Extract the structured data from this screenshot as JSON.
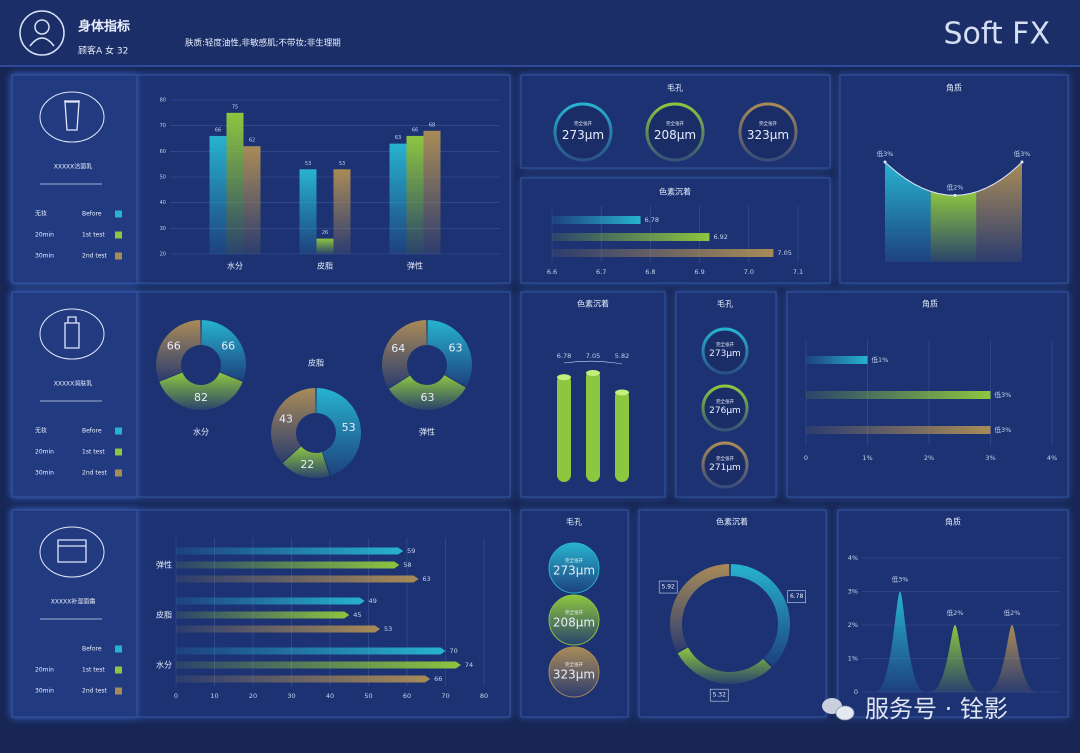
{
  "header": {
    "title": "身体指标",
    "customer": "顾客A 女 32",
    "skin": "肤质:轻度油性,非敏感肌;不带妆;非生理期",
    "brand": "Soft FX"
  },
  "products": [
    {
      "name": "XXXXX洁面乳",
      "legend": [
        {
          "time": "无妆",
          "name": "Before",
          "color": "#27b3cf"
        },
        {
          "time": "20min",
          "name": "1st test",
          "color": "#8dc63f"
        },
        {
          "time": "30min",
          "name": "2nd test",
          "color": "#a98b57"
        }
      ]
    },
    {
      "name": "XXXXX润肤乳",
      "legend": [
        {
          "time": "无妆",
          "name": "Before",
          "color": "#27b3cf"
        },
        {
          "time": "20min",
          "name": "1st test",
          "color": "#8dc63f"
        },
        {
          "time": "30min",
          "name": "2nd test",
          "color": "#a98b57"
        }
      ]
    },
    {
      "name": "XXXXX补湿面霜",
      "legend": [
        {
          "name": "Before",
          "color": "#27b3cf"
        },
        {
          "time": "20min",
          "name": "1st test",
          "color": "#8dc63f"
        },
        {
          "time": "30min",
          "name": "2nd test",
          "color": "#a98b57"
        }
      ]
    }
  ],
  "chart_data": [
    {
      "type": "bar",
      "categories": [
        "水分",
        "皮脂",
        "弹性"
      ],
      "series": [
        {
          "color": "#27b3cf",
          "values": [
            66,
            53,
            63
          ]
        },
        {
          "color": "#8dc63f",
          "values": [
            75,
            26,
            66
          ]
        },
        {
          "color": "#a98b57",
          "values": [
            62,
            53,
            68
          ]
        }
      ],
      "ylim": [
        20,
        80
      ],
      "yticks": [
        20,
        30,
        40,
        50,
        60,
        70,
        80
      ],
      "grid": true
    },
    {
      "type": "ring",
      "title": "毛孔",
      "sublabel": "完全张开",
      "values": [
        273,
        208,
        323
      ],
      "value_labels": [
        "273μm",
        "208μm",
        "323μm"
      ],
      "colors": [
        "#27b3cf",
        "#8dc63f",
        "#a98b57"
      ]
    },
    {
      "type": "hbar",
      "title": "色素沉着",
      "values": [
        6.78,
        6.92,
        7.05
      ],
      "colors": [
        "#27b3cf",
        "#8dc63f",
        "#a98b57"
      ],
      "xlim": [
        6.6,
        7.1
      ],
      "xticks": [
        6.6,
        6.7,
        6.8,
        6.9,
        {
          "value": 7,
          "label": "7.0"
        },
        7.1
      ],
      "grid": true
    },
    {
      "type": "curve",
      "title": "角质",
      "values": [
        3,
        2,
        3
      ],
      "value_labels": [
        "低3%",
        "低2%",
        "低3%"
      ],
      "colors": [
        "#27b3cf",
        "#8dc63f",
        "#a98b57"
      ]
    },
    {
      "type": "donut",
      "title": "水分",
      "values": [
        66,
        82,
        66
      ],
      "colors": [
        "#27b3cf",
        "#8dc63f",
        "#a98b57"
      ]
    },
    {
      "type": "donut",
      "title": "皮脂",
      "values": [
        53,
        22,
        43
      ],
      "colors": [
        "#27b3cf",
        "#8dc63f",
        "#a98b57"
      ]
    },
    {
      "type": "donut",
      "title": "弹性",
      "values": [
        63,
        63,
        64
      ],
      "colors": [
        "#27b3cf",
        "#8dc63f",
        "#a98b57"
      ]
    },
    {
      "type": "cylinder",
      "title": "色素沉着",
      "values": [
        6.78,
        7.05,
        5.82
      ],
      "color": "#8dc63f"
    },
    {
      "type": "ring",
      "title": "毛孔",
      "sublabel": "完全张开",
      "values": [
        273,
        276,
        271
      ],
      "value_labels": [
        "273μm",
        "276μm",
        "271μm"
      ],
      "colors": [
        "#27b3cf",
        "#8dc63f",
        "#a98b57"
      ]
    },
    {
      "type": "hbar",
      "title": "角质",
      "values": [
        1,
        3,
        3
      ],
      "value_labels": [
        "低1%",
        "低3%",
        "低3%"
      ],
      "colors": [
        "#27b3cf",
        "#8dc63f",
        "#a98b57"
      ],
      "xlim": [
        0,
        4
      ],
      "xticks": [
        0,
        {
          "value": 1,
          "label": "1%"
        },
        {
          "value": 2,
          "label": "2%"
        },
        {
          "value": 3,
          "label": "3%"
        },
        {
          "value": 4,
          "label": "4%"
        }
      ],
      "grid": true
    },
    {
      "type": "hbar",
      "categories": [
        "弹性",
        "皮脂",
        "水分"
      ],
      "series": [
        {
          "color": "#27b3cf",
          "values": [
            59,
            49,
            70
          ]
        },
        {
          "color": "#8dc63f",
          "values": [
            58,
            45,
            74
          ]
        },
        {
          "color": "#a98b57",
          "values": [
            63,
            53,
            66
          ]
        }
      ],
      "xlim": [
        0,
        80
      ],
      "xticks": [
        0,
        10,
        20,
        30,
        40,
        50,
        60,
        70,
        80
      ],
      "grid": true
    },
    {
      "type": "ring",
      "title": "毛孔",
      "sublabel": "完全张开",
      "values": [
        273,
        208,
        323
      ],
      "value_labels": [
        "273μm",
        "208μm",
        "323μm"
      ],
      "colors": [
        "#27b3cf",
        "#8dc63f",
        "#a98b57"
      ]
    },
    {
      "type": "donut",
      "title": "色素沉着",
      "values": [
        6.78,
        5.32,
        5.92
      ],
      "colors": [
        "#27b3cf",
        "#8dc63f",
        "#a98b57"
      ]
    },
    {
      "type": "peaks",
      "title": "角质",
      "values": [
        3,
        2,
        2
      ],
      "value_labels": [
        "低3%",
        "低2%",
        "低2%"
      ],
      "colors": [
        "#27b3cf",
        "#8dc63f",
        "#a98b57"
      ],
      "ylim": [
        0,
        4
      ],
      "yticks": [
        0,
        {
          "value": 1,
          "label": "1%"
        },
        {
          "value": 2,
          "label": "2%"
        },
        {
          "value": 3,
          "label": "3%"
        },
        {
          "value": 4,
          "label": "4%"
        }
      ]
    }
  ],
  "watermark": "服务号 · 铨影"
}
